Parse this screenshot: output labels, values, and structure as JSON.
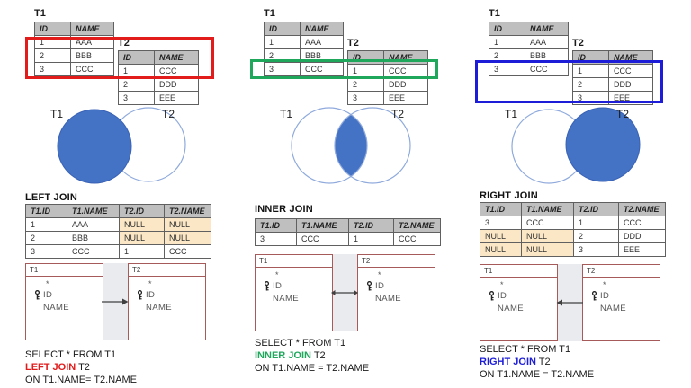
{
  "colors": {
    "venn_fill": "#4472C4",
    "venn_outline": "#8FAADC",
    "header_bg": "#BFBFBF",
    "null_bg": "#FBE7C5",
    "schema_border": "#A65A5A",
    "schema_bg": "#E9EBEE",
    "left_accent": "#E21B1B",
    "inner_accent": "#1FA75C",
    "right_accent": "#1D1DD8"
  },
  "panels": [
    {
      "join_label": "LEFT JOIN",
      "accent": "#E21B1B",
      "t1": {
        "title": "T1",
        "headers": [
          "ID",
          "NAME"
        ],
        "rows": [
          [
            "1",
            "AAA"
          ],
          [
            "2",
            "BBB"
          ],
          [
            "3",
            "CCC"
          ]
        ]
      },
      "t2": {
        "title": "T2",
        "headers": [
          "ID",
          "NAME"
        ],
        "rows": [
          [
            "1",
            "CCC"
          ],
          [
            "2",
            "DDD"
          ],
          [
            "3",
            "EEE"
          ]
        ]
      },
      "venn": {
        "left_label": "T1",
        "right_label": "T2",
        "filled": "left-circle"
      },
      "result": {
        "headers": [
          "T1.ID",
          "T1.NAME",
          "T2.ID",
          "T2.NAME"
        ],
        "rows": [
          [
            "1",
            "AAA",
            "NULL",
            "NULL"
          ],
          [
            "2",
            "BBB",
            "NULL",
            "NULL"
          ],
          [
            "3",
            "CCC",
            "1",
            "CCC"
          ]
        ]
      },
      "schema": {
        "boxes": [
          {
            "title": "T1",
            "star": "*",
            "fields": [
              "ID",
              "NAME"
            ]
          },
          {
            "title": "T2",
            "star": "*",
            "fields": [
              "ID",
              "NAME"
            ]
          }
        ],
        "arrow": "t1-to-t2"
      },
      "sql": {
        "line1": "SELECT * FROM T1",
        "keyword": "LEFT JOIN",
        "rest": " T2",
        "line3": "ON T1.NAME= T2.NAME"
      }
    },
    {
      "join_label": "INNER JOIN",
      "accent": "#1FA75C",
      "t1": {
        "title": "T1",
        "headers": [
          "ID",
          "NAME"
        ],
        "rows": [
          [
            "1",
            "AAA"
          ],
          [
            "2",
            "BBB"
          ],
          [
            "3",
            "CCC"
          ]
        ]
      },
      "t2": {
        "title": "T2",
        "headers": [
          "ID",
          "NAME"
        ],
        "rows": [
          [
            "1",
            "CCC"
          ],
          [
            "2",
            "DDD"
          ],
          [
            "3",
            "EEE"
          ]
        ]
      },
      "venn": {
        "left_label": "T1",
        "right_label": "T2",
        "filled": "intersection"
      },
      "result": {
        "headers": [
          "T1.ID",
          "T1.NAME",
          "T2.ID",
          "T2.NAME"
        ],
        "rows": [
          [
            "3",
            "CCC",
            "1",
            "CCC"
          ]
        ]
      },
      "schema": {
        "boxes": [
          {
            "title": "T1",
            "star": "*",
            "fields": [
              "ID",
              "NAME"
            ]
          },
          {
            "title": "T2",
            "star": "*",
            "fields": [
              "ID",
              "NAME"
            ]
          }
        ],
        "arrow": "both"
      },
      "sql": {
        "line1": "SELECT * FROM T1",
        "keyword": "INNER JOIN",
        "rest": " T2",
        "line3": "ON T1.NAME = T2.NAME"
      }
    },
    {
      "join_label": "RIGHT JOIN",
      "accent": "#1D1DD8",
      "t1": {
        "title": "T1",
        "headers": [
          "ID",
          "NAME"
        ],
        "rows": [
          [
            "1",
            "AAA"
          ],
          [
            "2",
            "BBB"
          ],
          [
            "3",
            "CCC"
          ]
        ]
      },
      "t2": {
        "title": "T2",
        "headers": [
          "ID",
          "NAME"
        ],
        "rows": [
          [
            "1",
            "CCC"
          ],
          [
            "2",
            "DDD"
          ],
          [
            "3",
            "EEE"
          ]
        ]
      },
      "venn": {
        "left_label": "T1",
        "right_label": "T2",
        "filled": "right-circle"
      },
      "result": {
        "headers": [
          "T1.ID",
          "T1.NAME",
          "T2.ID",
          "T2.NAME"
        ],
        "rows": [
          [
            "3",
            "CCC",
            "1",
            "CCC"
          ],
          [
            "NULL",
            "NULL",
            "2",
            "DDD"
          ],
          [
            "NULL",
            "NULL",
            "3",
            "EEE"
          ]
        ]
      },
      "schema": {
        "boxes": [
          {
            "title": "T1",
            "star": "*",
            "fields": [
              "ID",
              "NAME"
            ]
          },
          {
            "title": "T2",
            "star": "*",
            "fields": [
              "ID",
              "NAME"
            ]
          }
        ],
        "arrow": "t2-to-t1"
      },
      "sql": {
        "line1": "SELECT * FROM T1",
        "keyword": "RIGHT JOIN",
        "rest": " T2",
        "line3": "ON T1.NAME = T2.NAME"
      }
    }
  ]
}
